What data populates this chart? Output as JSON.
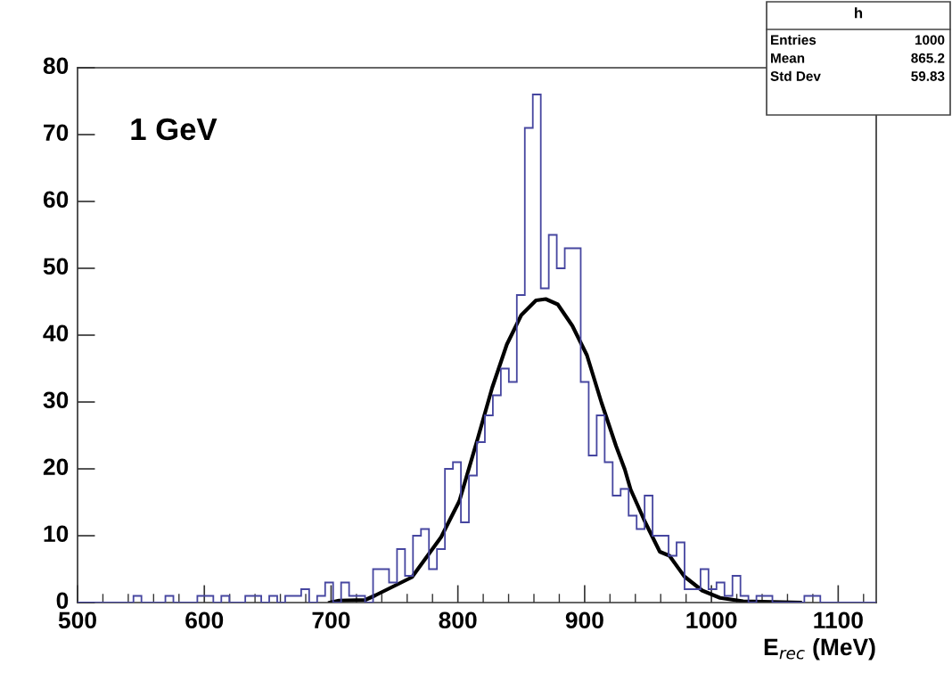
{
  "chart_data": {
    "type": "histogram",
    "xlabel": "E$_{rec}$ (MeV)",
    "annotations": [
      "1 GeV",
      "h",
      "Entries",
      "1000",
      "Mean",
      "865.2",
      "Std Dev",
      "59.83"
    ],
    "xlim": [
      500,
      1130
    ],
    "xticks": [
      500,
      600,
      700,
      800,
      900,
      1000,
      1100
    ],
    "ylim": [
      0,
      80
    ],
    "yticks": [
      0,
      10,
      20,
      30,
      40,
      50,
      60,
      70,
      80
    ],
    "grid": false,
    "color": "#4646a0",
    "bins": [
      500,
      506.3,
      512.6,
      518.9,
      525.2,
      531.5,
      537.8,
      544.1,
      550.4,
      556.7,
      563,
      569.3,
      575.6,
      581.9,
      588.2,
      594.5,
      600.8,
      607.1,
      613.4,
      619.7,
      626,
      632.3,
      638.6,
      644.9,
      651.2,
      657.5,
      663.8,
      670.1,
      676.4,
      682.7,
      689,
      695.3,
      701.6,
      707.9,
      714.2,
      720.5,
      726.8,
      733.1,
      739.4,
      745.7,
      752,
      758.3,
      764.6,
      770.9,
      777.2,
      783.5,
      789.8,
      796.1,
      802.4,
      808.7,
      815,
      821.3,
      827.6,
      833.9,
      840.2,
      846.5,
      852.8,
      859.1,
      865.4,
      871.7,
      878,
      884.3,
      890.6,
      896.9,
      903.2,
      909.5,
      915.8,
      922.1,
      928.4,
      934.7,
      941,
      947.3,
      953.6,
      959.9,
      966.2,
      972.5,
      978.8,
      985.1,
      991.4,
      997.7,
      1004,
      1010.3,
      1016.6,
      1022.9,
      1029.2,
      1035.5,
      1041.8,
      1048.1,
      1054.4,
      1060.7,
      1067,
      1073.3,
      1079.6,
      1085.9,
      1092.2,
      1098.5,
      1104.8,
      1111.1,
      1117.4,
      1123.7,
      1130
    ],
    "values": [
      0,
      0,
      0,
      0,
      0,
      0,
      0,
      1,
      0,
      0,
      0,
      1,
      0,
      0,
      0,
      1,
      1,
      0,
      1,
      0,
      0,
      1,
      1,
      0,
      1,
      0,
      1,
      1,
      2,
      0,
      1,
      3,
      0,
      3,
      1,
      1,
      0,
      5,
      5,
      3,
      8,
      4,
      10,
      11,
      5,
      8,
      20,
      21,
      12,
      19,
      24,
      28,
      31,
      35,
      33,
      46,
      71,
      76,
      47,
      55,
      50,
      53,
      53,
      33,
      22,
      28,
      21,
      16,
      17,
      13,
      11,
      16,
      10,
      10,
      7,
      9,
      2,
      2,
      5,
      2,
      3,
      1,
      4,
      1,
      0,
      1,
      1,
      0,
      0,
      0,
      0,
      1,
      1,
      0,
      0,
      0,
      0,
      0,
      0,
      0
    ],
    "series": [
      {
        "type": "line",
        "color": "#000000",
        "x": [
          699,
          706.3,
          727,
          735.1,
          763.8,
          786.8,
          801.2,
          815.6,
          827,
          838.6,
          850,
          861.6,
          869.3,
          878.8,
          890.3,
          901.8,
          913.3,
          924.8,
          931.7,
          936.3,
          947.8,
          959.3,
          966.9,
          978.7,
          992.7,
          1006.8,
          1025,
          1070
        ],
        "values": [
          0,
          0.3,
          0.4,
          1.1,
          3.8,
          9.8,
          15.2,
          24.5,
          32.1,
          38.6,
          43,
          45.2,
          45.4,
          44.6,
          41.4,
          37,
          29.9,
          23.4,
          19.9,
          16.9,
          12,
          7.6,
          7.0,
          3.9,
          1.8,
          0.7,
          0.2,
          0
        ]
      }
    ]
  }
}
